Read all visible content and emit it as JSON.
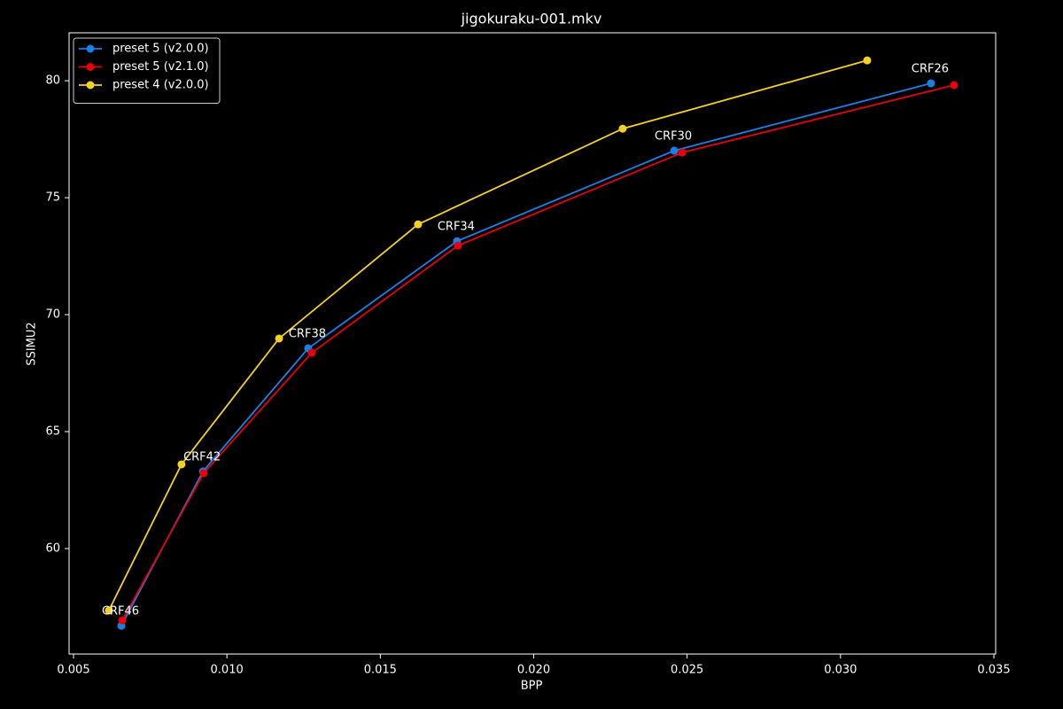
{
  "chart_data": {
    "type": "line",
    "title": "jigokuraku-001.mkv",
    "x_label": "BPP",
    "y_label": "SSIMU2",
    "xlim": [
      0.004856,
      0.035058
    ],
    "ylim": [
      55.49,
      82.05
    ],
    "xticks": [
      0.005,
      {
        "value": 0.01,
        "label": "0.010"
      },
      0.015,
      {
        "value": 0.02,
        "label": "0.020"
      },
      0.025,
      {
        "value": 0.03,
        "label": "0.030"
      },
      0.035
    ],
    "yticks": [
      60,
      65,
      70,
      75,
      80
    ],
    "legend": "upper left",
    "grid": false,
    "series": [
      {
        "name": "preset 5 (v2.0.0)",
        "color": "#1a7fe6",
        "x": [
          0.00656,
          0.00922,
          0.01265,
          0.0175,
          0.02458,
          0.03295
        ],
        "values": [
          56.7,
          63.3,
          68.56,
          73.14,
          77.01,
          79.89
        ]
      },
      {
        "name": "preset 5 (v2.1.0)",
        "color": "#e8000b",
        "x": [
          0.00659,
          0.00924,
          0.01277,
          0.01753,
          0.02484,
          0.0337
        ],
        "values": [
          56.93,
          63.22,
          68.37,
          72.95,
          76.93,
          79.81
        ]
      },
      {
        "name": "preset 4 (v2.0.0)",
        "color": "#f5d020",
        "x": [
          0.00615,
          0.00852,
          0.0117,
          0.01623,
          0.0229,
          0.03087
        ],
        "values": [
          57.35,
          63.6,
          68.98,
          73.86,
          77.95,
          80.87
        ]
      }
    ],
    "annotations": [
      "CRF46",
      "CRF42",
      "CRF38",
      "CRF34",
      "CRF30",
      "CRF26"
    ]
  }
}
